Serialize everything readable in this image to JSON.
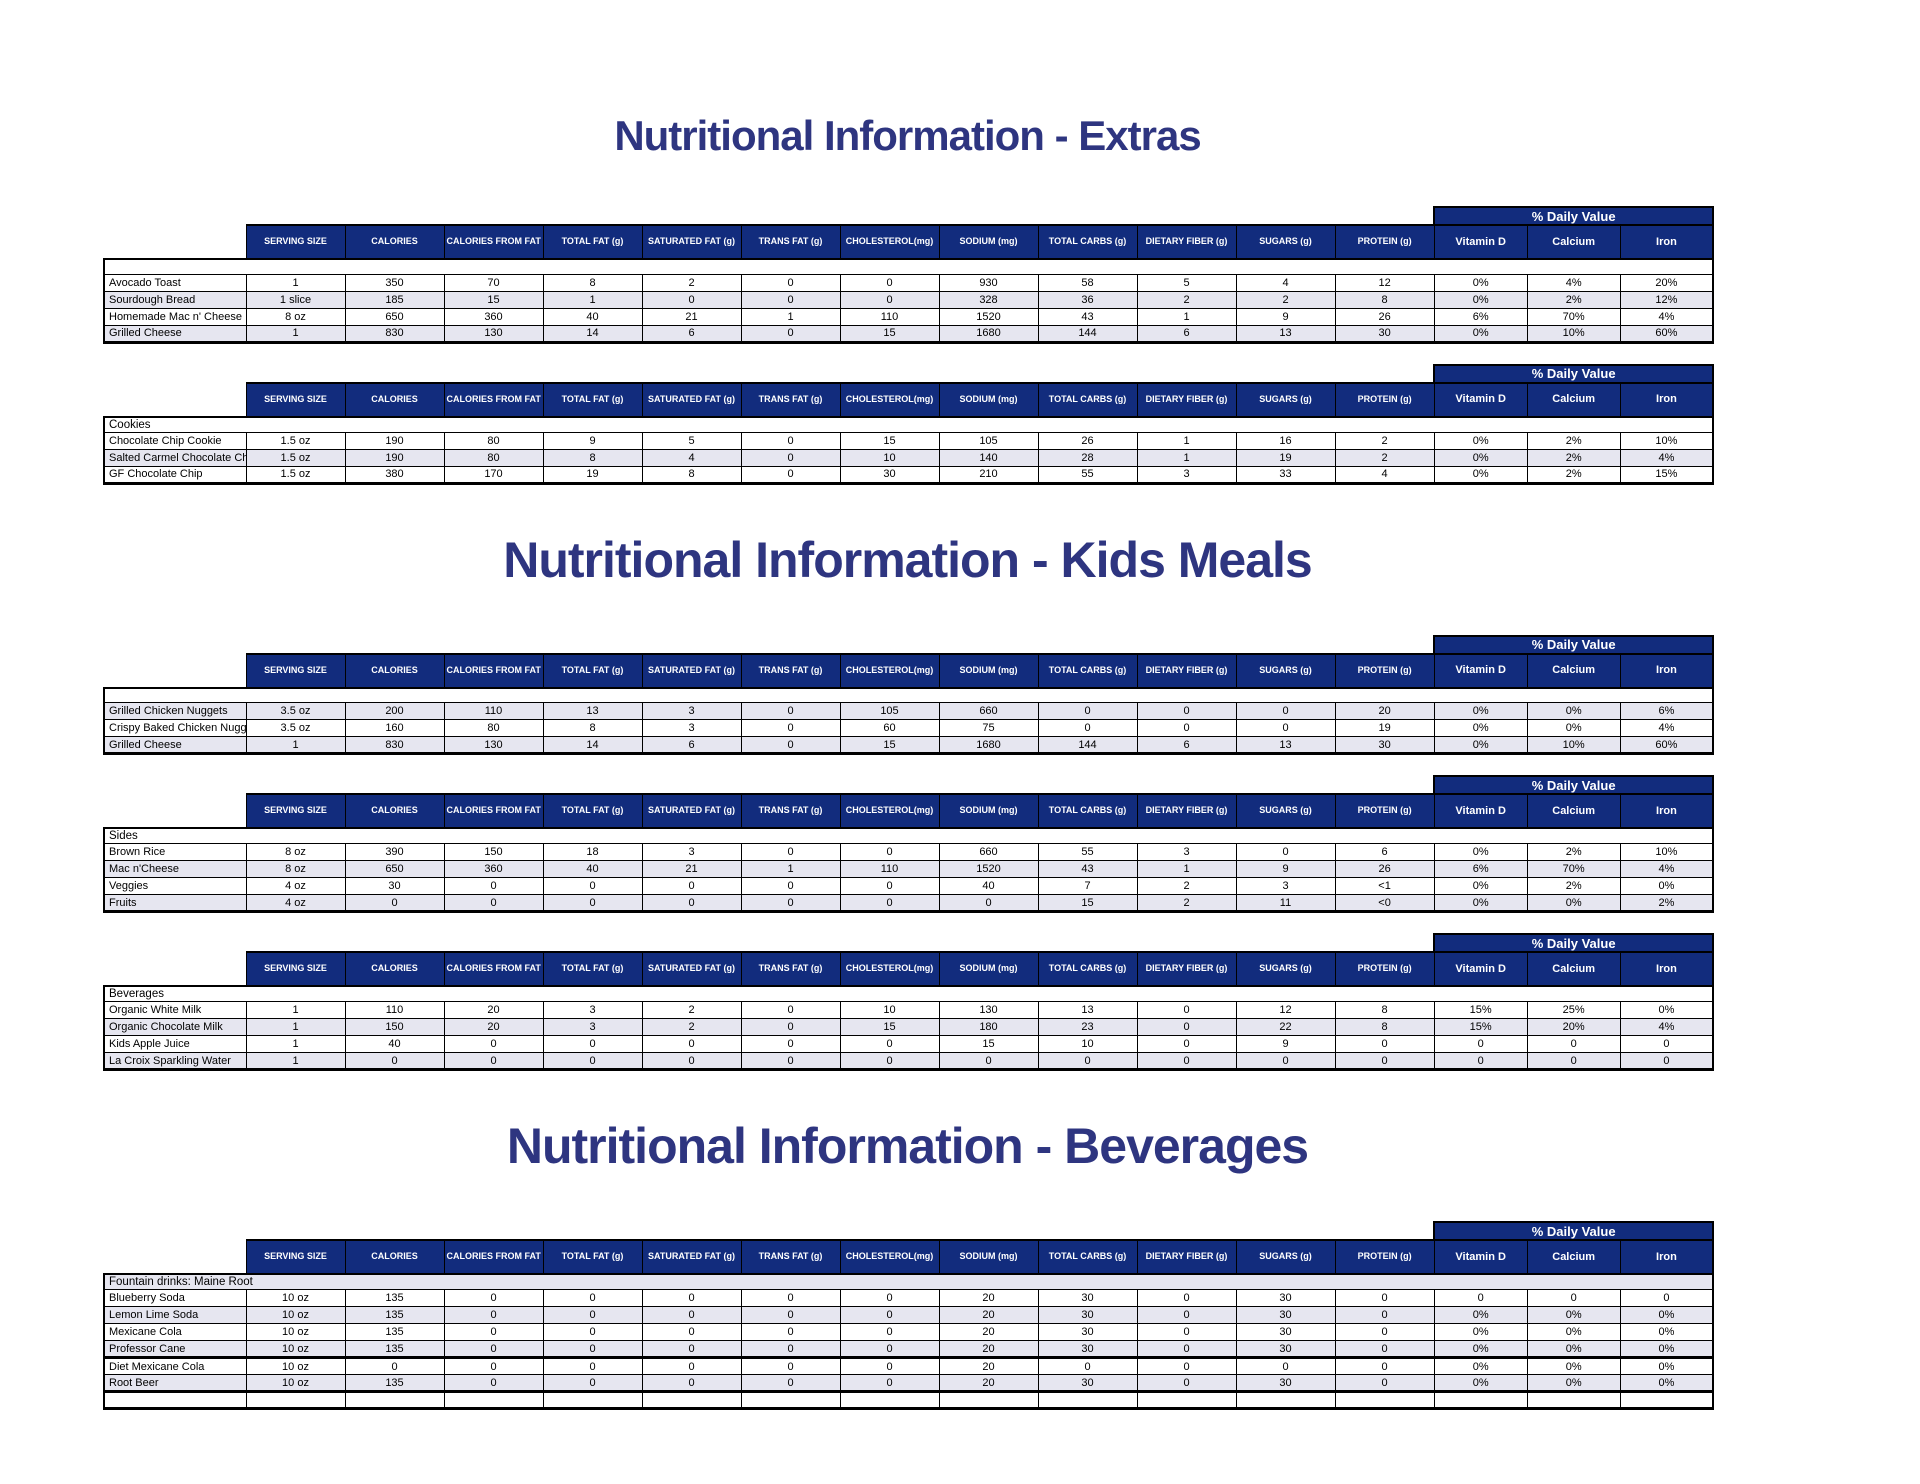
{
  "document": {
    "titles": [
      "Nutritional Information - Extras",
      "Nutritional Information - Kids Meals",
      "Nutritional Information - Beverages"
    ]
  },
  "colors": {
    "header_navy": "#122c7d",
    "shaded_row": "#e6e6f0",
    "title_indigo": "#2e3580"
  },
  "table_header": {
    "daily_value": "% Daily Value",
    "columns": [
      "SERVING SIZE",
      "CALORIES",
      "CALORIES FROM FAT",
      "TOTAL FAT (g)",
      "SATURATED FAT (g)",
      "TRANS FAT (g)",
      "CHOLESTEROL(mg)",
      "SODIUM (mg)",
      "TOTAL CARBS (g)",
      "DIETARY FIBER (g)",
      "SUGARS (g)",
      "PROTEIN (g)"
    ],
    "daily_value_columns": [
      "Vitamin D",
      "Calcium",
      "Iron"
    ]
  },
  "tables": [
    {
      "group_label": "",
      "group_shaded": false,
      "rows": [
        {
          "name": "Avocado Toast",
          "shaded": false,
          "values": [
            "1",
            "350",
            "70",
            "8",
            "2",
            "0",
            "0",
            "930",
            "58",
            "5",
            "4",
            "12",
            "0%",
            "4%",
            "20%"
          ]
        },
        {
          "name": "Sourdough Bread",
          "shaded": true,
          "values": [
            "1 slice",
            "185",
            "15",
            "1",
            "0",
            "0",
            "0",
            "328",
            "36",
            "2",
            "2",
            "8",
            "0%",
            "2%",
            "12%"
          ]
        },
        {
          "name": "Homemade Mac n' Cheese",
          "shaded": false,
          "values": [
            "8 oz",
            "650",
            "360",
            "40",
            "21",
            "1",
            "110",
            "1520",
            "43",
            "1",
            "9",
            "26",
            "6%",
            "70%",
            "4%"
          ]
        },
        {
          "name": "Grilled Cheese",
          "shaded": true,
          "values": [
            "1",
            "830",
            "130",
            "14",
            "6",
            "0",
            "15",
            "1680",
            "144",
            "6",
            "13",
            "30",
            "0%",
            "10%",
            "60%"
          ]
        }
      ]
    },
    {
      "group_label": "Cookies",
      "group_shaded": false,
      "rows": [
        {
          "name": "Chocolate Chip Cookie",
          "shaded": false,
          "values": [
            "1.5 oz",
            "190",
            "80",
            "9",
            "5",
            "0",
            "15",
            "105",
            "26",
            "1",
            "16",
            "2",
            "0%",
            "2%",
            "10%"
          ]
        },
        {
          "name": "Salted Carmel Chocolate Chunk",
          "shaded": true,
          "values": [
            "1.5 oz",
            "190",
            "80",
            "8",
            "4",
            "0",
            "10",
            "140",
            "28",
            "1",
            "19",
            "2",
            "0%",
            "2%",
            "4%"
          ]
        },
        {
          "name": "GF Chocolate Chip",
          "shaded": false,
          "values": [
            "1.5 oz",
            "380",
            "170",
            "19",
            "8",
            "0",
            "30",
            "210",
            "55",
            "3",
            "33",
            "4",
            "0%",
            "2%",
            "15%"
          ]
        }
      ]
    },
    {
      "group_label": "",
      "group_shaded": false,
      "rows": [
        {
          "name": "Grilled Chicken Nuggets",
          "shaded": true,
          "values": [
            "3.5 oz",
            "200",
            "110",
            "13",
            "3",
            "0",
            "105",
            "660",
            "0",
            "0",
            "0",
            "20",
            "0%",
            "0%",
            "6%"
          ]
        },
        {
          "name": "Crispy Baked Chicken Nuggets",
          "shaded": false,
          "values": [
            "3.5 oz",
            "160",
            "80",
            "8",
            "3",
            "0",
            "60",
            "75",
            "0",
            "0",
            "0",
            "19",
            "0%",
            "0%",
            "4%"
          ]
        },
        {
          "name": "Grilled Cheese",
          "shaded": true,
          "values": [
            "1",
            "830",
            "130",
            "14",
            "6",
            "0",
            "15",
            "1680",
            "144",
            "6",
            "13",
            "30",
            "0%",
            "10%",
            "60%"
          ]
        }
      ]
    },
    {
      "group_label": "Sides",
      "group_shaded": false,
      "rows": [
        {
          "name": "Brown Rice",
          "shaded": false,
          "values": [
            "8 oz",
            "390",
            "150",
            "18",
            "3",
            "0",
            "0",
            "660",
            "55",
            "3",
            "0",
            "6",
            "0%",
            "2%",
            "10%"
          ]
        },
        {
          "name": "Mac n'Cheese",
          "shaded": true,
          "values": [
            "8 oz",
            "650",
            "360",
            "40",
            "21",
            "1",
            "110",
            "1520",
            "43",
            "1",
            "9",
            "26",
            "6%",
            "70%",
            "4%"
          ]
        },
        {
          "name": "Veggies",
          "shaded": false,
          "values": [
            "4 oz",
            "30",
            "0",
            "0",
            "0",
            "0",
            "0",
            "40",
            "7",
            "2",
            "3",
            "<1",
            "0%",
            "2%",
            "0%"
          ]
        },
        {
          "name": "Fruits",
          "shaded": true,
          "values": [
            "4 oz",
            "0",
            "0",
            "0",
            "0",
            "0",
            "0",
            "0",
            "15",
            "2",
            "11",
            "<0",
            "0%",
            "0%",
            "2%"
          ]
        }
      ]
    },
    {
      "group_label": "Beverages",
      "group_shaded": false,
      "rows": [
        {
          "name": "Organic White Milk",
          "shaded": false,
          "values": [
            "1",
            "110",
            "20",
            "3",
            "2",
            "0",
            "10",
            "130",
            "13",
            "0",
            "12",
            "8",
            "15%",
            "25%",
            "0%"
          ]
        },
        {
          "name": "Organic Chocolate Milk",
          "shaded": true,
          "values": [
            "1",
            "150",
            "20",
            "3",
            "2",
            "0",
            "15",
            "180",
            "23",
            "0",
            "22",
            "8",
            "15%",
            "20%",
            "4%"
          ]
        },
        {
          "name": "Kids Apple Juice",
          "shaded": false,
          "values": [
            "1",
            "40",
            "0",
            "0",
            "0",
            "0",
            "0",
            "15",
            "10",
            "0",
            "9",
            "0",
            "0",
            "0",
            "0"
          ]
        },
        {
          "name": "La Croix Sparkling Water",
          "shaded": true,
          "values": [
            "1",
            "0",
            "0",
            "0",
            "0",
            "0",
            "0",
            "0",
            "0",
            "0",
            "0",
            "0",
            "0",
            "0",
            "0"
          ]
        }
      ]
    },
    {
      "group_label": "Fountain drinks: Maine Root",
      "group_shaded": true,
      "rows": [
        {
          "name": "Blueberry Soda",
          "shaded": false,
          "values": [
            "10 oz",
            "135",
            "0",
            "0",
            "0",
            "0",
            "0",
            "20",
            "30",
            "0",
            "30",
            "0",
            "0",
            "0",
            "0"
          ]
        },
        {
          "name": "Lemon Lime Soda",
          "shaded": true,
          "values": [
            "10 oz",
            "135",
            "0",
            "0",
            "0",
            "0",
            "0",
            "20",
            "30",
            "0",
            "30",
            "0",
            "0%",
            "0%",
            "0%"
          ]
        },
        {
          "name": "Mexicane Cola",
          "shaded": false,
          "values": [
            "10 oz",
            "135",
            "0",
            "0",
            "0",
            "0",
            "0",
            "20",
            "30",
            "0",
            "30",
            "0",
            "0%",
            "0%",
            "0%"
          ]
        },
        {
          "name": "Professor Cane",
          "shaded": true,
          "values": [
            "10 oz",
            "135",
            "0",
            "0",
            "0",
            "0",
            "0",
            "20",
            "30",
            "0",
            "30",
            "0",
            "0%",
            "0%",
            "0%"
          ]
        },
        {
          "name": "Diet Mexicane Cola",
          "shaded": false,
          "thick_top": true,
          "values": [
            "10 oz",
            "0",
            "0",
            "0",
            "0",
            "0",
            "0",
            "20",
            "0",
            "0",
            "0",
            "0",
            "0%",
            "0%",
            "0%"
          ]
        },
        {
          "name": "Root Beer",
          "shaded": true,
          "values": [
            "10 oz",
            "135",
            "0",
            "0",
            "0",
            "0",
            "0",
            "20",
            "30",
            "0",
            "30",
            "0",
            "0%",
            "0%",
            "0%"
          ]
        },
        {
          "name": "",
          "shaded": false,
          "thick_top": true,
          "values": [
            "",
            "",
            "",
            "",
            "",
            "",
            "",
            "",
            "",
            "",
            "",
            "",
            "",
            "",
            ""
          ]
        }
      ]
    }
  ]
}
